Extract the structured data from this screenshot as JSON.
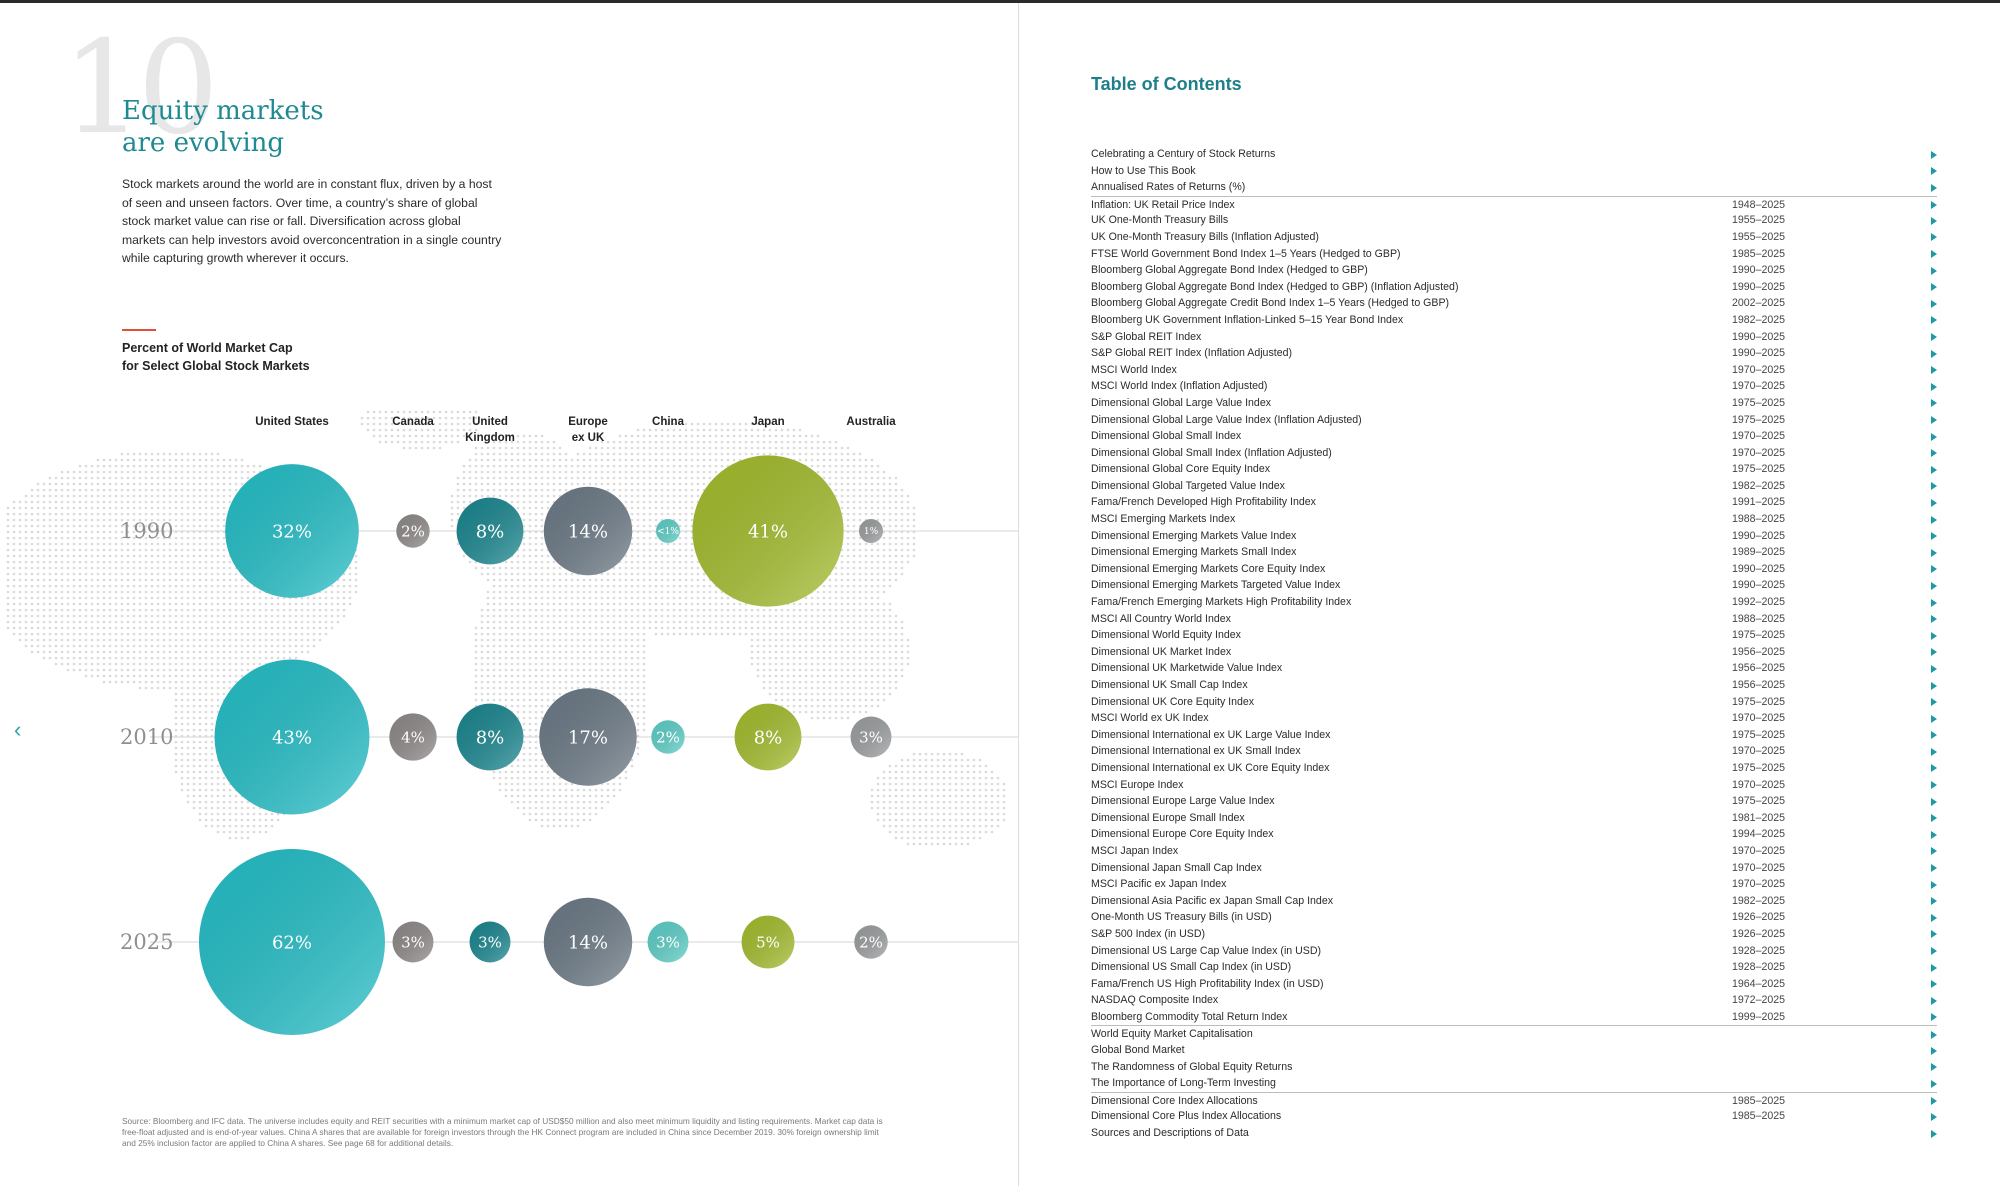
{
  "chapter": {
    "number": "10",
    "title_line1": "Equity markets",
    "title_line2": "are evolving",
    "intro": "Stock markets around the world are in constant flux, driven by a host of seen and unseen factors. Over time, a country’s share of global stock market value can rise or fall. Diversification across global markets can help investors avoid overconcentration in a single country while capturing growth wherever it occurs."
  },
  "chart_data": {
    "type": "bubble",
    "title_line1": "Percent of World Market Cap",
    "title_line2": "for Select Global Stock Markets",
    "units": "%",
    "categories": [
      {
        "line1": "United States",
        "line2": ""
      },
      {
        "line1": "Canada",
        "line2": ""
      },
      {
        "line1": "United",
        "line2": "Kingdom"
      },
      {
        "line1": "Europe",
        "line2": "ex UK"
      },
      {
        "line1": "China",
        "line2": ""
      },
      {
        "line1": "Japan",
        "line2": ""
      },
      {
        "line1": "Australia",
        "line2": ""
      }
    ],
    "series": [
      {
        "name": "1990",
        "values": [
          32,
          2,
          8,
          14,
          0.5,
          41,
          1
        ],
        "labels": [
          "32%",
          "2%",
          "8%",
          "14%",
          "<1%",
          "41%",
          "1%"
        ]
      },
      {
        "name": "2010",
        "values": [
          43,
          4,
          8,
          17,
          2,
          8,
          3
        ],
        "labels": [
          "43%",
          "4%",
          "8%",
          "17%",
          "2%",
          "8%",
          "3%"
        ]
      },
      {
        "name": "2025",
        "values": [
          62,
          3,
          3,
          14,
          3,
          5,
          2
        ],
        "labels": [
          "62%",
          "3%",
          "3%",
          "14%",
          "3%",
          "5%",
          "2%"
        ]
      }
    ],
    "colors": {
      "United States": "#25bfc7",
      "Canada": "#8e8a89",
      "United Kingdom": "#1b8790",
      "Europe ex UK": "#6c7a86",
      "China": "#5ecfc7",
      "Japan": "#a4bd2e",
      "Australia": "#9c9fa0"
    }
  },
  "source": "Source: Bloomberg and IFC data. The universe includes equity and REIT securities with a minimum market cap of USD$50 million and also meet minimum liquidity and listing requirements. Market cap data is free-float adjusted and is end-of-year values. China A shares that are available for foreign investors through the HK Connect program are included in China since December 2019. 30% foreign ownership limit and 25% inclusion factor are applied to China A shares. See page 68 for additional details.",
  "toc": {
    "title": "Table of Contents",
    "items": [
      {
        "label": "Celebrating a Century of Stock Returns",
        "years": ""
      },
      {
        "label": "How to Use This Book",
        "years": ""
      },
      {
        "label": "Annualised Rates of Returns (%)",
        "years": ""
      },
      {
        "label": "Inflation: UK Retail Price Index",
        "years": "1948–2025"
      },
      {
        "label": "UK One-Month Treasury Bills",
        "years": "1955–2025"
      },
      {
        "label": "UK One-Month Treasury Bills (Inflation Adjusted)",
        "years": "1955–2025"
      },
      {
        "label": "FTSE World Government Bond Index 1–5 Years (Hedged to GBP)",
        "years": "1985–2025"
      },
      {
        "label": "Bloomberg Global Aggregate Bond Index (Hedged to GBP)",
        "years": "1990–2025"
      },
      {
        "label": "Bloomberg Global Aggregate Bond Index (Hedged to GBP) (Inflation Adjusted)",
        "years": "1990–2025"
      },
      {
        "label": "Bloomberg Global Aggregate Credit Bond Index 1–5 Years (Hedged to GBP)",
        "years": "2002–2025"
      },
      {
        "label": "Bloomberg UK Government Inflation-Linked 5–15 Year Bond Index",
        "years": "1982–2025"
      },
      {
        "label": "S&P Global REIT Index",
        "years": "1990–2025"
      },
      {
        "label": "S&P Global REIT Index (Inflation Adjusted)",
        "years": "1990–2025"
      },
      {
        "label": "MSCI World Index",
        "years": "1970–2025"
      },
      {
        "label": "MSCI World Index (Inflation Adjusted)",
        "years": "1970–2025"
      },
      {
        "label": "Dimensional Global Large Value Index",
        "years": "1975–2025"
      },
      {
        "label": "Dimensional Global Large Value Index (Inflation Adjusted)",
        "years": "1975–2025"
      },
      {
        "label": "Dimensional Global Small Index",
        "years": "1970–2025"
      },
      {
        "label": "Dimensional Global Small Index (Inflation Adjusted)",
        "years": "1970–2025"
      },
      {
        "label": "Dimensional Global Core Equity Index",
        "years": "1975–2025"
      },
      {
        "label": "Dimensional Global Targeted Value Index",
        "years": "1982–2025"
      },
      {
        "label": "Fama/French Developed High Profitability Index",
        "years": "1991–2025"
      },
      {
        "label": "MSCI Emerging Markets Index",
        "years": "1988–2025"
      },
      {
        "label": "Dimensional Emerging Markets Value Index",
        "years": "1990–2025"
      },
      {
        "label": "Dimensional Emerging Markets Small Index",
        "years": "1989–2025"
      },
      {
        "label": "Dimensional Emerging Markets Core Equity Index",
        "years": "1990–2025"
      },
      {
        "label": "Dimensional Emerging Markets Targeted Value Index",
        "years": "1990–2025"
      },
      {
        "label": "Fama/French Emerging Markets High Profitability Index",
        "years": "1992–2025"
      },
      {
        "label": "MSCI All Country World Index",
        "years": "1988–2025"
      },
      {
        "label": "Dimensional World Equity Index",
        "years": "1975–2025"
      },
      {
        "label": "Dimensional UK Market Index",
        "years": "1956–2025"
      },
      {
        "label": "Dimensional UK Marketwide Value Index",
        "years": "1956–2025"
      },
      {
        "label": "Dimensional UK Small Cap Index",
        "years": "1956–2025"
      },
      {
        "label": "Dimensional UK Core Equity Index",
        "years": "1975–2025"
      },
      {
        "label": "MSCI World ex UK Index",
        "years": "1970–2025"
      },
      {
        "label": "Dimensional International ex UK Large Value Index",
        "years": "1975–2025"
      },
      {
        "label": "Dimensional International ex UK Small Index",
        "years": "1970–2025"
      },
      {
        "label": "Dimensional International ex UK Core Equity Index",
        "years": "1975–2025"
      },
      {
        "label": "MSCI Europe Index",
        "years": "1970–2025"
      },
      {
        "label": "Dimensional Europe Large Value Index",
        "years": "1975–2025"
      },
      {
        "label": "Dimensional Europe Small Index",
        "years": "1981–2025"
      },
      {
        "label": "Dimensional Europe Core Equity Index",
        "years": "1994–2025"
      },
      {
        "label": "MSCI Japan Index",
        "years": "1970–2025"
      },
      {
        "label": "Dimensional Japan Small Cap Index",
        "years": "1970–2025"
      },
      {
        "label": "MSCI Pacific ex Japan Index",
        "years": "1970–2025"
      },
      {
        "label": "Dimensional Asia Pacific ex Japan Small Cap Index",
        "years": "1982–2025"
      },
      {
        "label": "One-Month US Treasury Bills (in USD)",
        "years": "1926–2025"
      },
      {
        "label": "S&P 500 Index (in USD)",
        "years": "1926–2025"
      },
      {
        "label": "Dimensional US Large Cap Value Index (in USD)",
        "years": "1928–2025"
      },
      {
        "label": "Dimensional US Small Cap Index (in USD)",
        "years": "1928–2025"
      },
      {
        "label": "Fama/French US High Profitability Index (in USD)",
        "years": "1964–2025"
      },
      {
        "label": "NASDAQ Composite Index",
        "years": "1972–2025"
      },
      {
        "label": "Bloomberg Commodity Total Return Index",
        "years": "1999–2025"
      },
      {
        "label": "World Equity Market Capitalisation",
        "years": ""
      },
      {
        "label": "Global Bond Market",
        "years": ""
      },
      {
        "label": "The Randomness of Global Equity Returns",
        "years": ""
      },
      {
        "label": "The Importance of Long-Term Investing",
        "years": ""
      },
      {
        "label": "Dimensional Core Index Allocations",
        "years": "1985–2025"
      },
      {
        "label": "Dimensional Core Plus Index Allocations",
        "years": "1985–2025"
      },
      {
        "label": "Sources and Descriptions of Data",
        "years": ""
      }
    ]
  }
}
